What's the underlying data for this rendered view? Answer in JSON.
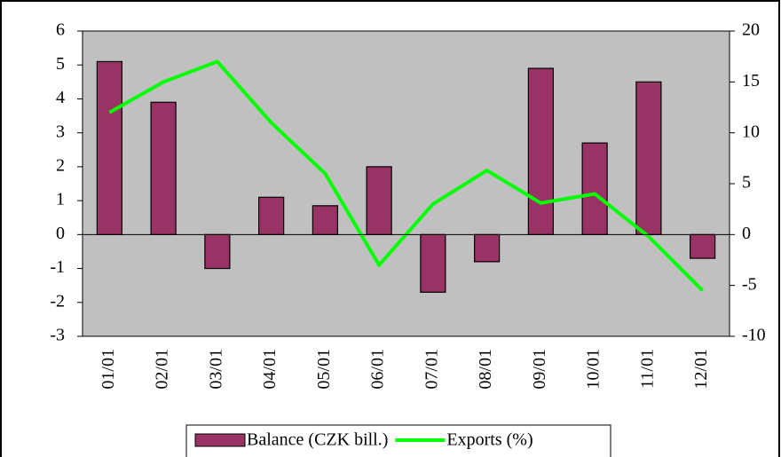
{
  "chart_data": {
    "type": "bar",
    "categories": [
      "01/01",
      "02/01",
      "03/01",
      "04/01",
      "05/01",
      "06/01",
      "07/01",
      "08/01",
      "09/01",
      "10/01",
      "11/01",
      "12/01"
    ],
    "series": [
      {
        "name": "Balance (CZK bill.)",
        "type": "bar",
        "color": "#993366",
        "values": [
          5.1,
          3.9,
          -1.0,
          1.1,
          0.85,
          2.0,
          -1.7,
          -0.8,
          4.9,
          2.7,
          4.5,
          -0.7
        ]
      },
      {
        "name": "Exports (%)",
        "type": "line",
        "axis": "y2",
        "color": "#00ff00",
        "values": [
          12,
          15,
          17,
          11,
          6,
          -3,
          3,
          6.3,
          3.1,
          4,
          -0.2,
          -5.5
        ]
      }
    ],
    "ylim": [
      -3,
      6
    ],
    "yticks": [
      -3,
      -2,
      -1,
      0,
      1,
      2,
      3,
      4,
      5,
      6
    ],
    "y2lim": [
      -10,
      20
    ],
    "y2ticks": [
      -10,
      -5,
      0,
      5,
      10,
      15,
      20
    ],
    "plot_background": "#c0c0c0",
    "legend": "bottom"
  }
}
